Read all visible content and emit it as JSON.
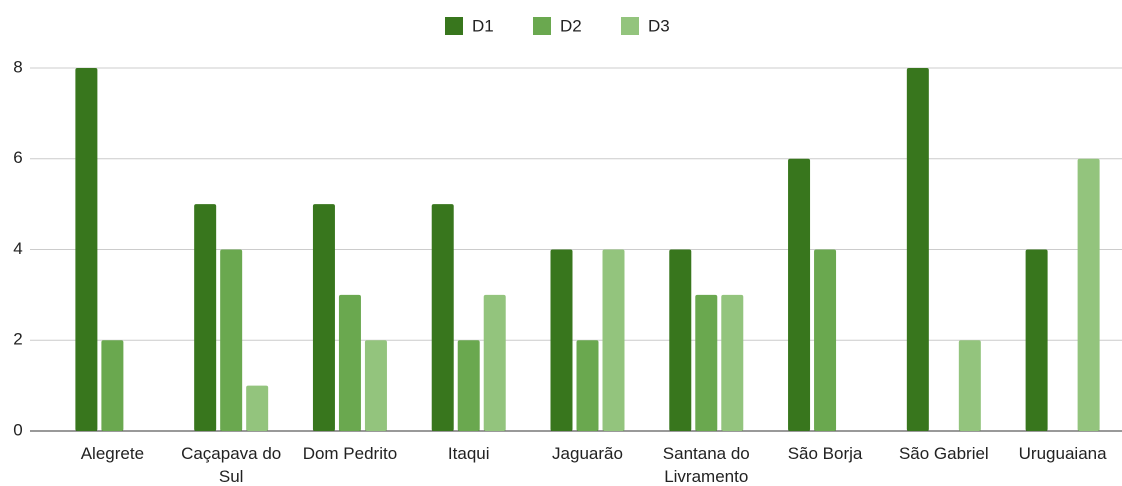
{
  "chart_data": {
    "type": "bar",
    "categories": [
      "Alegrete",
      "Caçapava do Sul",
      "Dom Pedrito",
      "Itaqui",
      "Jaguarão",
      "Santana do Livramento",
      "São Borja",
      "São Gabriel",
      "Uruguaiana"
    ],
    "series": [
      {
        "name": "D1",
        "color": "#38761d",
        "values": [
          8,
          5,
          5,
          5,
          4,
          4,
          6,
          8,
          4
        ]
      },
      {
        "name": "D2",
        "color": "#6aa84f",
        "values": [
          2,
          4,
          3,
          2,
          2,
          3,
          4,
          null,
          null
        ]
      },
      {
        "name": "D3",
        "color": "#93c47d",
        "values": [
          null,
          1,
          2,
          3,
          4,
          3,
          null,
          2,
          6
        ]
      }
    ],
    "ylim": [
      0,
      8
    ],
    "yticks": [
      0,
      2,
      4,
      6,
      8
    ],
    "grid": true,
    "legend": "top"
  }
}
